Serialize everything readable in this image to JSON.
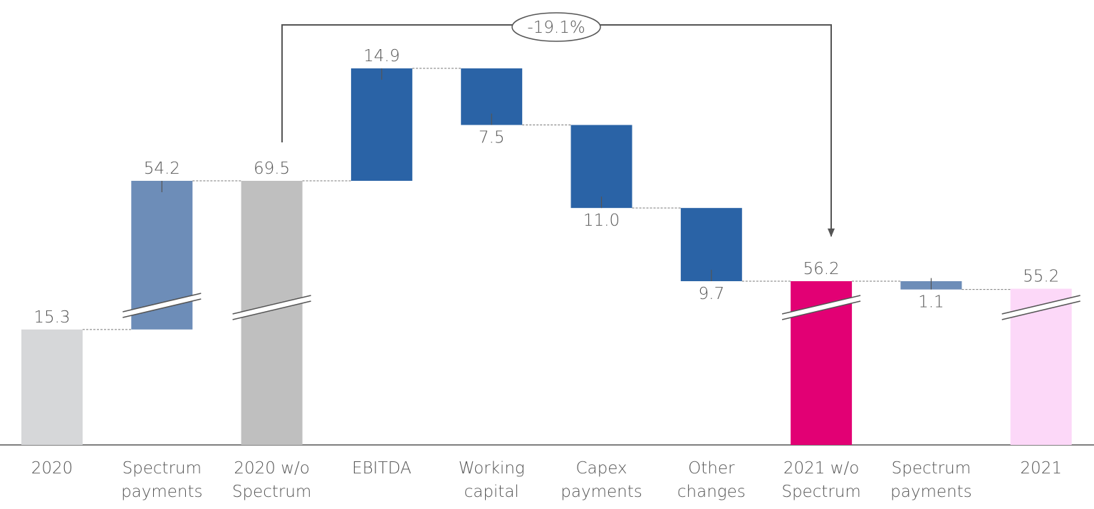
{
  "chart_data": {
    "type": "waterfall",
    "categories": [
      [
        "2020"
      ],
      [
        "Spectrum",
        "payments"
      ],
      [
        "2020 w/o",
        "Spectrum"
      ],
      [
        "EBITDA"
      ],
      [
        "Working",
        "capital"
      ],
      [
        "Capex",
        "payments"
      ],
      [
        "Other",
        "changes"
      ],
      [
        "2021 w/o",
        "Spectrum"
      ],
      [
        "Spectrum",
        "payments"
      ],
      [
        "2021"
      ]
    ],
    "values": [
      15.3,
      54.2,
      69.5,
      14.9,
      7.5,
      11.0,
      9.7,
      56.2,
      1.1,
      55.2
    ],
    "value_labels": [
      "15.3",
      "54.2",
      "69.5",
      "14.9",
      "7.5",
      "11.0",
      "9.7",
      "56.2",
      "1.1",
      "55.2"
    ],
    "steps": [
      "total",
      "up",
      "total",
      "up",
      "down",
      "down",
      "down",
      "total",
      "down",
      "total"
    ],
    "colors": [
      "#d6d7d9",
      "#6d8db8",
      "#bfbfbf",
      "#2a63a6",
      "#2a63a6",
      "#2a63a6",
      "#2a63a6",
      "#e20074",
      "#6d8db8",
      "#fcd8f8"
    ],
    "annotation": "-19.1%"
  }
}
